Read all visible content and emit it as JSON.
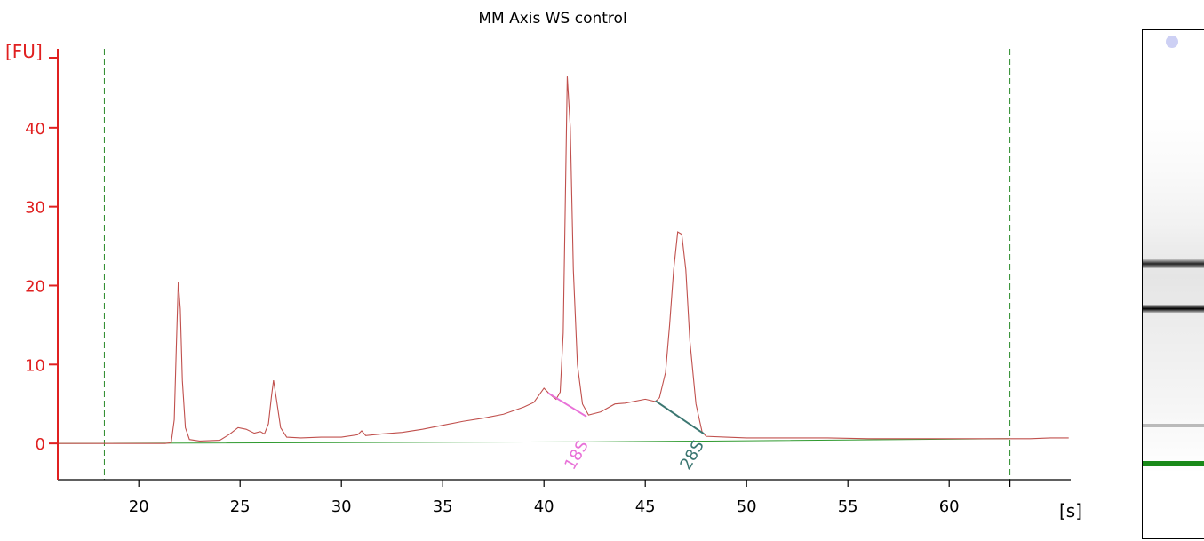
{
  "chart_data": {
    "type": "line",
    "title": "MM Axis WS control",
    "ylabel": "[FU]",
    "xlabel": "[s]",
    "xlim": [
      16,
      66
    ],
    "ylim": [
      -4.6,
      50
    ],
    "x_ticks": [
      20,
      25,
      30,
      35,
      40,
      45,
      50,
      55,
      60
    ],
    "y_ticks": [
      0,
      10,
      20,
      30,
      40
    ],
    "grid": false,
    "vlines": [
      18.3,
      63.0
    ],
    "colors": {
      "trace": "#c0504d",
      "axis": "#e02020",
      "baseline": "#2f9a2f",
      "marker": "#2a8a2a",
      "s18": "#e872d8",
      "s28": "#3c7772"
    },
    "series": [
      {
        "values_xy": [
          [
            16,
            0
          ],
          [
            21.3,
            0
          ],
          [
            21.6,
            0.1
          ],
          [
            21.75,
            3
          ],
          [
            21.85,
            12
          ],
          [
            21.95,
            20.5
          ],
          [
            22.05,
            17
          ],
          [
            22.15,
            8
          ],
          [
            22.3,
            2
          ],
          [
            22.5,
            0.5
          ],
          [
            23,
            0.3
          ],
          [
            24,
            0.4
          ],
          [
            24.5,
            1.2
          ],
          [
            24.9,
            2
          ],
          [
            25.3,
            1.8
          ],
          [
            25.7,
            1.3
          ],
          [
            26,
            1.5
          ],
          [
            26.2,
            1.2
          ],
          [
            26.4,
            2.5
          ],
          [
            26.55,
            6
          ],
          [
            26.65,
            8
          ],
          [
            26.8,
            5.5
          ],
          [
            27,
            2
          ],
          [
            27.3,
            0.8
          ],
          [
            28,
            0.7
          ],
          [
            29,
            0.8
          ],
          [
            30,
            0.8
          ],
          [
            30.8,
            1.1
          ],
          [
            31,
            1.6
          ],
          [
            31.2,
            1
          ],
          [
            32,
            1.2
          ],
          [
            33,
            1.4
          ],
          [
            34,
            1.8
          ],
          [
            35,
            2.3
          ],
          [
            36,
            2.8
          ],
          [
            37,
            3.2
          ],
          [
            38,
            3.7
          ],
          [
            39,
            4.6
          ],
          [
            39.5,
            5.2
          ],
          [
            40,
            7
          ],
          [
            40.3,
            6.2
          ],
          [
            40.6,
            5.6
          ],
          [
            40.8,
            6.5
          ],
          [
            40.95,
            14
          ],
          [
            41.05,
            30
          ],
          [
            41.15,
            46.5
          ],
          [
            41.3,
            40
          ],
          [
            41.45,
            22
          ],
          [
            41.65,
            10
          ],
          [
            41.9,
            5
          ],
          [
            42.2,
            3.6
          ],
          [
            42.8,
            4
          ],
          [
            43.5,
            5
          ],
          [
            44,
            5.1
          ],
          [
            45,
            5.6
          ],
          [
            45.5,
            5.3
          ],
          [
            45.7,
            5.8
          ],
          [
            46,
            9
          ],
          [
            46.2,
            15
          ],
          [
            46.4,
            22
          ],
          [
            46.6,
            26.8
          ],
          [
            46.8,
            26.5
          ],
          [
            47,
            22
          ],
          [
            47.2,
            13
          ],
          [
            47.5,
            5
          ],
          [
            47.8,
            1.5
          ],
          [
            48,
            0.9
          ],
          [
            49,
            0.8
          ],
          [
            50,
            0.7
          ],
          [
            52,
            0.7
          ],
          [
            54,
            0.7
          ],
          [
            56,
            0.6
          ],
          [
            58,
            0.6
          ],
          [
            60,
            0.6
          ],
          [
            62,
            0.6
          ],
          [
            64,
            0.6
          ],
          [
            65,
            0.7
          ],
          [
            65.9,
            0.7
          ]
        ]
      }
    ],
    "baseline_xy": [
      [
        16,
        0
      ],
      [
        42,
        0.2
      ],
      [
        48,
        0.3
      ],
      [
        63,
        0.6
      ]
    ],
    "annotations": [
      {
        "label": "18S",
        "x": 41.1,
        "line": [
          [
            40.2,
            6.4
          ],
          [
            42.1,
            3.4
          ]
        ]
      },
      {
        "label": "28S",
        "x": 46.8,
        "line": [
          [
            45.5,
            5.4
          ],
          [
            47.9,
            1.2
          ]
        ]
      }
    ]
  }
}
